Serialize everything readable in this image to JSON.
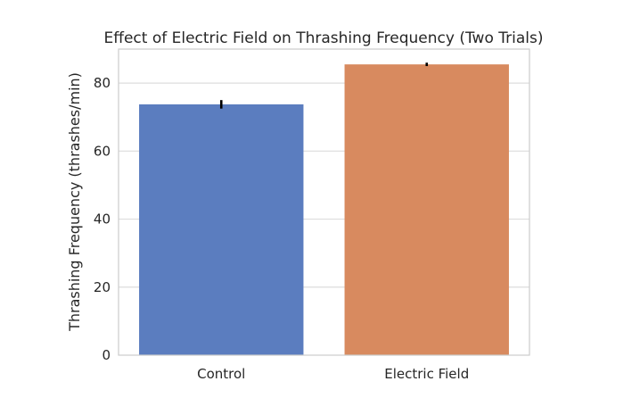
{
  "chart_data": {
    "type": "bar",
    "title": "Effect of Electric Field on Thrashing Frequency (Two Trials)",
    "xlabel": "",
    "ylabel": "Thrashing Frequency (thrashes/min)",
    "categories": [
      "Control",
      "Electric Field"
    ],
    "values": [
      73.75,
      85.5
    ],
    "error": [
      1.25,
      0.5
    ],
    "colors": [
      "#5b7dbf",
      "#d88a5f"
    ],
    "error_color": "#000000",
    "ylim": [
      0,
      90
    ],
    "yticks": [
      0,
      20,
      40,
      60,
      80
    ],
    "grid": true,
    "legend": "none"
  }
}
